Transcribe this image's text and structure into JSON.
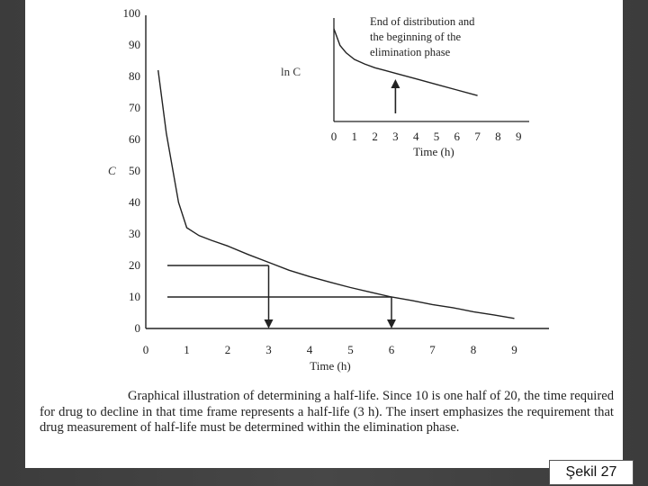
{
  "slide_label": "Şekil 27",
  "caption": "Graphical illustration of determining a half-life. Since 10 is one half of 20, the time required for drug to decline in that time frame represents a half-life (3 h). The insert emphasizes the requirement that drug measurement of half-life must be determined within the elimination phase.",
  "chart_data": [
    {
      "type": "line",
      "title": "",
      "xlabel": "Time (h)",
      "ylabel": "C",
      "xlim": [
        0,
        10
      ],
      "ylim": [
        0,
        100
      ],
      "x_ticks": [
        "0",
        "1",
        "2",
        "3",
        "4",
        "5",
        "6",
        "7",
        "8",
        "9"
      ],
      "y_ticks": [
        "0",
        "10",
        "20",
        "30",
        "40",
        "50",
        "60",
        "70",
        "80",
        "90",
        "100"
      ],
      "series": [
        {
          "x": [
            0.3,
            0.5,
            0.8,
            1.0,
            1.3,
            1.6,
            2.0,
            2.5,
            3.0,
            3.5,
            4.0,
            4.5,
            5.0,
            5.5,
            6.0,
            6.5,
            7.0,
            7.5,
            8.0,
            8.5,
            9.0
          ],
          "values": [
            82,
            62,
            40,
            32,
            29.5,
            28,
            26.2,
            23.5,
            21,
            18.5,
            16.5,
            14.7,
            13,
            11.5,
            10,
            8.9,
            7.6,
            6.6,
            5.3,
            4.3,
            3.2
          ]
        }
      ],
      "markers": [
        {
          "level": 20,
          "time": 3
        },
        {
          "level": 10,
          "time": 6
        }
      ]
    },
    {
      "type": "line",
      "title": "",
      "xlabel": "Time (h)",
      "ylabel": "ln C",
      "xlim": [
        0,
        9
      ],
      "x_ticks": [
        "0",
        "1",
        "2",
        "3",
        "4",
        "5",
        "6",
        "7",
        "8",
        "9"
      ],
      "annotation": "End of distribution and the beginning of the elimination phase",
      "annotation_lines": [
        "End of distribution and",
        "the beginning of the",
        "elimination phase"
      ],
      "arrow_at_x": 3,
      "series": [
        {
          "x": [
            0,
            0.3,
            0.6,
            1.0,
            1.5,
            2.0,
            2.5,
            3.0,
            4.0,
            5.0,
            6.0,
            7.0
          ],
          "values": [
            1.0,
            0.82,
            0.74,
            0.67,
            0.62,
            0.58,
            0.55,
            0.52,
            0.46,
            0.4,
            0.34,
            0.28
          ]
        }
      ]
    }
  ]
}
